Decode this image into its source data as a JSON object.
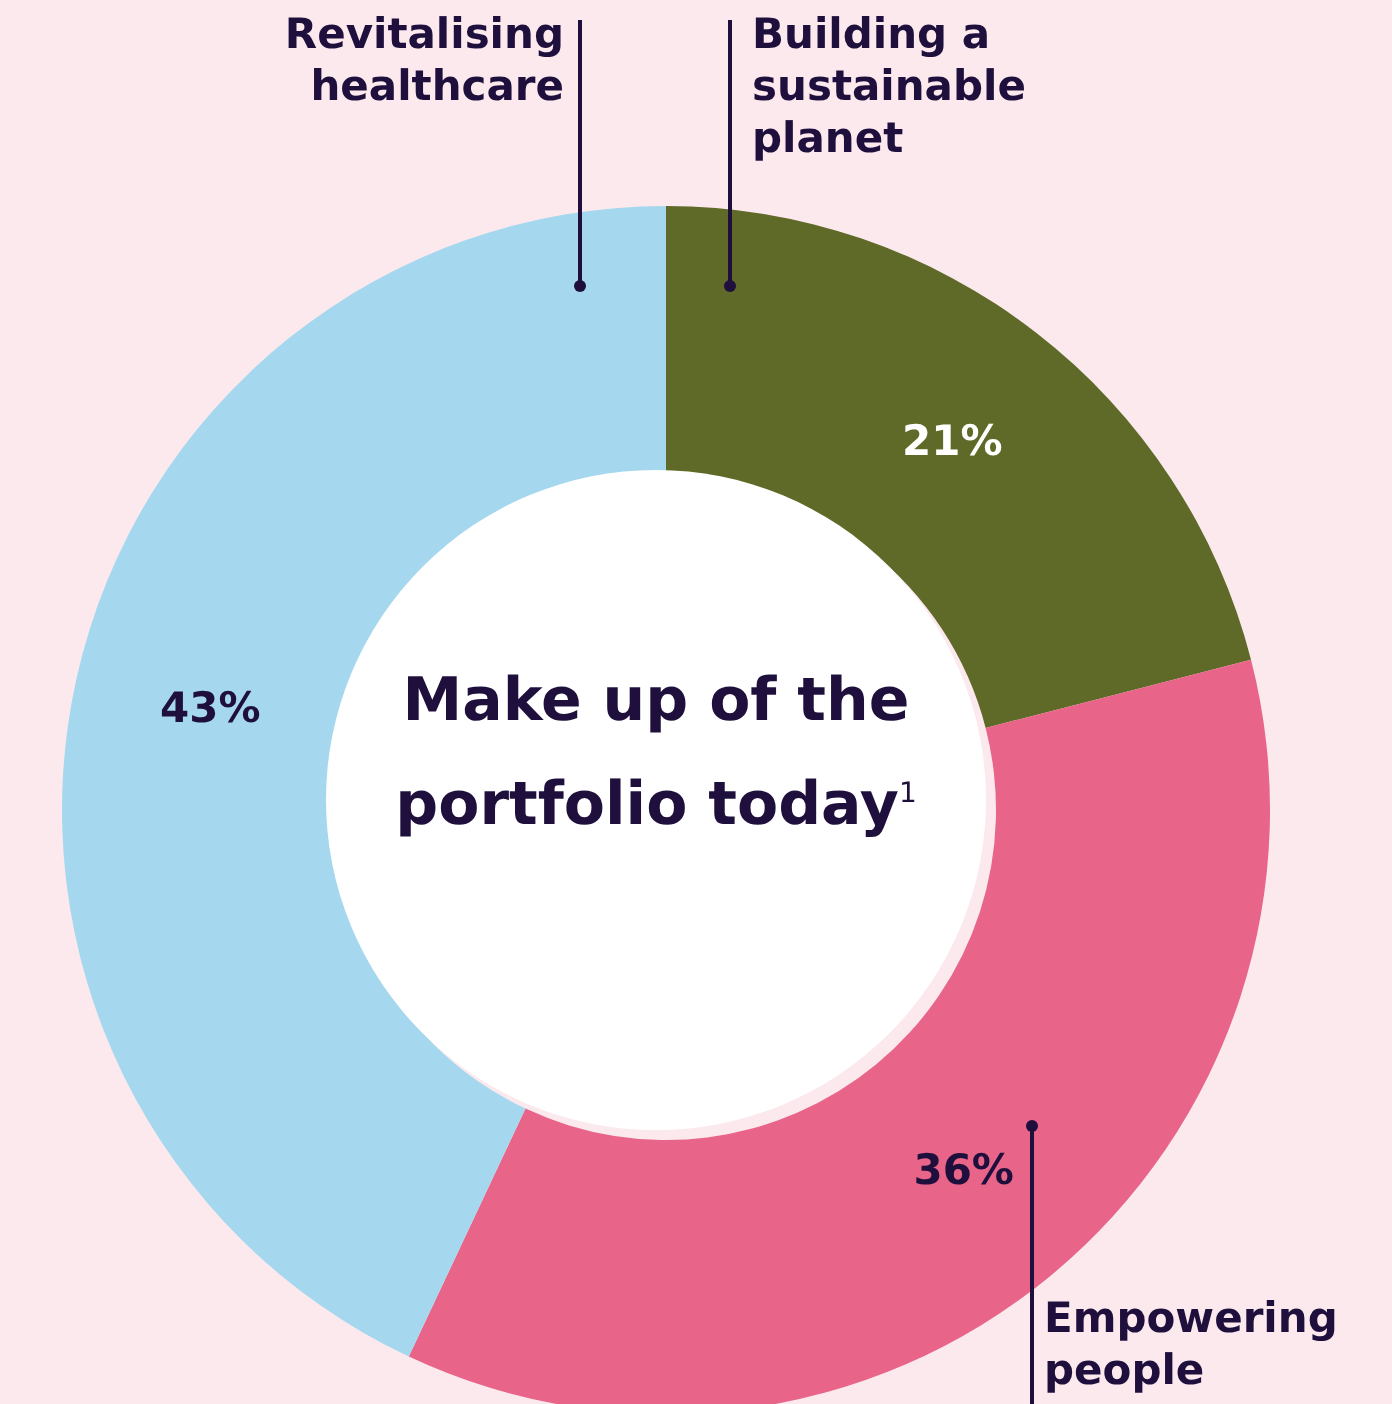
{
  "chart_data": {
    "type": "donut",
    "title": "Make up of the portfolio today$^{1}$",
    "categories": [
      "Building a sustainable planet",
      "Empowering people",
      "Revitalising healthcare"
    ],
    "values": [
      21,
      36,
      43
    ],
    "colors": [
      "#5f6a28",
      "#e86489",
      "#a5d8ee"
    ],
    "value_labels": [
      "21%",
      "36%",
      "43%"
    ]
  }
}
